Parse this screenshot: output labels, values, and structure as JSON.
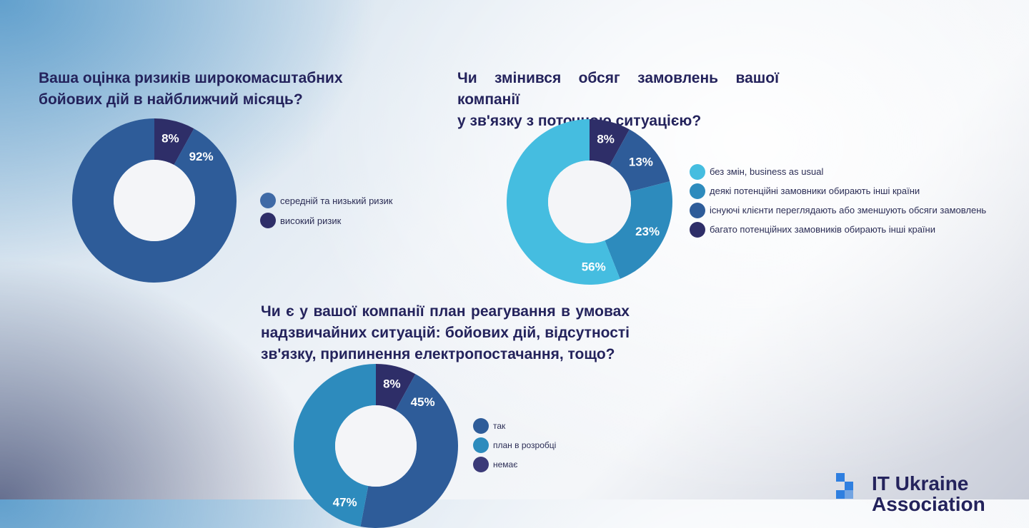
{
  "charts": [
    {
      "title_lines": [
        "Ваша оцінка ризиків широкомасштабних",
        "бойових дій в найближчий місяць?"
      ],
      "legend": [
        {
          "label": "середній та низький ризик",
          "color": "#3f6aa6"
        },
        {
          "label": "високий ризик",
          "color": "#2e2e68"
        }
      ]
    },
    {
      "title_lines": [
        "Чи змінився обсяг замовлень вашої компанії",
        "у зв'язку з поточною ситуацією?"
      ],
      "legend": [
        {
          "label": "без змін, business as usual",
          "color": "#45bde0"
        },
        {
          "label": "деякі потенційні замовники обирають інші країни",
          "color": "#2d8bbd"
        },
        {
          "label": "існуючі клієнти переглядають або зменшують обсяги замовлень",
          "color": "#2e5c99"
        },
        {
          "label": "багато потенційних замовників обирають інші країни",
          "color": "#2e2e68"
        }
      ]
    },
    {
      "title_lines": [
        "Чи є у вашої компанії план реагування в умовах",
        "надзвичайних ситуацій: бойових дій, відсутності",
        "зв'язку, припинення електропостачання, тощо?"
      ],
      "legend": [
        {
          "label": "так",
          "color": "#2e5c99"
        },
        {
          "label": "план в розробці",
          "color": "#2d8bbd"
        },
        {
          "label": "немає",
          "color": "#3b3a78"
        }
      ]
    }
  ],
  "chart_data": [
    {
      "type": "pie",
      "donut": true,
      "slices": [
        {
          "label": "високий ризик",
          "value": 8,
          "value_label": "8%",
          "color": "#2e2e68"
        },
        {
          "label": "середній та низький ризик",
          "value": 92,
          "value_label": "92%",
          "color": "#2e5c99"
        }
      ]
    },
    {
      "type": "pie",
      "donut": true,
      "slices": [
        {
          "label": "багато потенційних замовників обирають інші країни",
          "value": 8,
          "value_label": "8%",
          "color": "#2e2e68"
        },
        {
          "label": "існуючі клієнти переглядають або зменшують обсяги замовлень",
          "value": 13,
          "value_label": "13%",
          "color": "#2e5c99"
        },
        {
          "label": "деякі потенційні замовники обирають інші країни",
          "value": 23,
          "value_label": "23%",
          "color": "#2d8bbd"
        },
        {
          "label": "без змін, business as usual",
          "value": 56,
          "value_label": "56%",
          "color": "#45bde0"
        }
      ]
    },
    {
      "type": "pie",
      "donut": true,
      "slices": [
        {
          "label": "немає",
          "value": 8,
          "value_label": "8%",
          "color": "#2e2e68"
        },
        {
          "label": "так",
          "value": 45,
          "value_label": "45%",
          "color": "#2e5c99"
        },
        {
          "label": "план в розробці",
          "value": 47,
          "value_label": "47%",
          "color": "#2d8bbd"
        }
      ]
    }
  ],
  "logo": {
    "line1": "IT Ukraine",
    "line2": "Association"
  }
}
